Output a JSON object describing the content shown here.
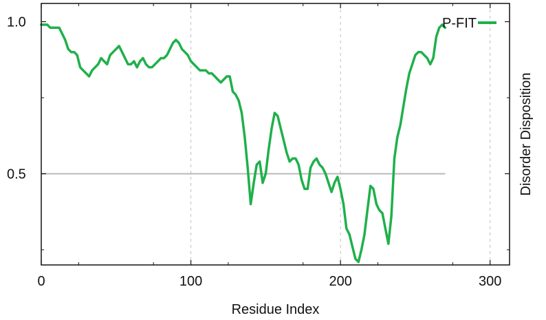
{
  "chart_data": {
    "type": "line",
    "xlabel": "Residue Index",
    "ylabel": "Disorder Disposition",
    "xlim": [
      0,
      313
    ],
    "ylim": [
      0.2,
      1.06
    ],
    "x_ticks": [
      0,
      100,
      200,
      300
    ],
    "x_tick_labels": [
      "0",
      "100",
      "200",
      "300"
    ],
    "y_ticks": [
      0.5,
      1.0
    ],
    "y_tick_labels": [
      "0.5",
      "1.0"
    ],
    "vertical_gridlines": [
      100,
      200,
      300
    ],
    "threshold": 0.5,
    "legend_position": "top-right",
    "series": [
      {
        "name": "P-FIT",
        "color": "#1fb04b",
        "x": [
          0,
          2,
          4,
          6,
          8,
          10,
          12,
          14,
          16,
          18,
          20,
          22,
          24,
          26,
          28,
          30,
          32,
          34,
          36,
          38,
          40,
          42,
          44,
          46,
          48,
          50,
          52,
          54,
          56,
          58,
          60,
          62,
          64,
          66,
          68,
          70,
          72,
          74,
          76,
          78,
          80,
          82,
          84,
          86,
          88,
          90,
          92,
          94,
          96,
          98,
          100,
          102,
          104,
          106,
          108,
          110,
          112,
          114,
          116,
          118,
          120,
          122,
          124,
          126,
          128,
          130,
          132,
          134,
          136,
          138,
          140,
          142,
          144,
          146,
          148,
          150,
          152,
          154,
          156,
          158,
          160,
          162,
          164,
          166,
          168,
          170,
          172,
          174,
          176,
          178,
          180,
          182,
          184,
          186,
          188,
          190,
          192,
          194,
          196,
          198,
          200,
          202,
          204,
          206,
          208,
          210,
          212,
          214,
          216,
          218,
          220,
          222,
          224,
          226,
          228,
          230,
          232,
          234,
          236,
          238,
          240,
          242,
          244,
          246,
          248,
          250,
          252,
          254,
          256,
          258,
          260,
          262,
          264,
          266,
          268,
          270
        ],
        "values": [
          0.99,
          0.99,
          0.99,
          0.98,
          0.98,
          0.98,
          0.98,
          0.96,
          0.94,
          0.91,
          0.9,
          0.9,
          0.89,
          0.85,
          0.84,
          0.83,
          0.82,
          0.84,
          0.85,
          0.86,
          0.88,
          0.87,
          0.86,
          0.89,
          0.9,
          0.91,
          0.92,
          0.9,
          0.88,
          0.86,
          0.86,
          0.87,
          0.85,
          0.87,
          0.88,
          0.86,
          0.85,
          0.85,
          0.86,
          0.87,
          0.88,
          0.88,
          0.89,
          0.91,
          0.93,
          0.94,
          0.93,
          0.91,
          0.9,
          0.89,
          0.87,
          0.86,
          0.85,
          0.84,
          0.84,
          0.84,
          0.83,
          0.83,
          0.82,
          0.81,
          0.8,
          0.81,
          0.82,
          0.82,
          0.77,
          0.76,
          0.74,
          0.7,
          0.62,
          0.52,
          0.4,
          0.47,
          0.53,
          0.54,
          0.47,
          0.5,
          0.58,
          0.65,
          0.7,
          0.69,
          0.65,
          0.61,
          0.57,
          0.54,
          0.55,
          0.55,
          0.53,
          0.48,
          0.45,
          0.45,
          0.52,
          0.54,
          0.55,
          0.53,
          0.52,
          0.5,
          0.47,
          0.44,
          0.47,
          0.49,
          0.45,
          0.4,
          0.32,
          0.3,
          0.26,
          0.22,
          0.21,
          0.25,
          0.3,
          0.38,
          0.46,
          0.45,
          0.4,
          0.38,
          0.37,
          0.32,
          0.27,
          0.36,
          0.55,
          0.62,
          0.66,
          0.72,
          0.78,
          0.83,
          0.86,
          0.89,
          0.9,
          0.9,
          0.89,
          0.88,
          0.86,
          0.88,
          0.95,
          0.98,
          0.99,
          0.98
        ]
      }
    ]
  }
}
